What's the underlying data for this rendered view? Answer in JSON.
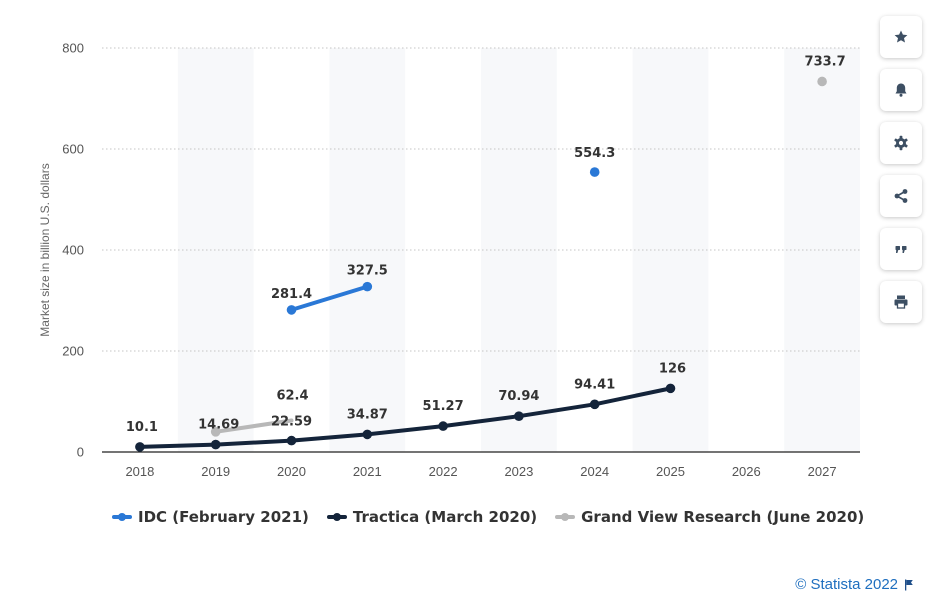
{
  "chart_data": {
    "type": "line",
    "title": "",
    "xlabel": "",
    "ylabel": "Market size in billion U.S. dollars",
    "categories": [
      "2018",
      "2019",
      "2020",
      "2021",
      "2022",
      "2023",
      "2024",
      "2025",
      "2026",
      "2027"
    ],
    "ylim": [
      0,
      800
    ],
    "yticks": [
      0,
      200,
      400,
      600,
      800
    ],
    "grid": true,
    "legend_position": "bottom",
    "series": [
      {
        "name": "IDC (February 2021)",
        "color": "#2a78d6",
        "values": [
          null,
          null,
          281.4,
          327.5,
          null,
          null,
          554.3,
          null,
          null,
          null
        ],
        "labels": [
          null,
          null,
          "281.4",
          "327.5",
          null,
          null,
          "554.3",
          null,
          null,
          null
        ]
      },
      {
        "name": "Tractica (March 2020)",
        "color": "#14243a",
        "values": [
          10.1,
          14.69,
          22.59,
          34.87,
          51.27,
          70.94,
          94.41,
          126,
          null,
          null
        ],
        "labels": [
          "10.1",
          "14.69",
          "22.59",
          "34.87",
          "51.27",
          "70.94",
          "94.41",
          "126",
          null,
          null
        ]
      },
      {
        "name": "Grand View Research (June 2020)",
        "color": "#b8b8b8",
        "values": [
          null,
          40,
          62.4,
          null,
          null,
          null,
          null,
          null,
          null,
          733.7
        ],
        "labels": [
          null,
          null,
          "62.4",
          null,
          null,
          null,
          null,
          null,
          null,
          "733.7"
        ]
      }
    ]
  },
  "toolbar": {
    "buttons": [
      {
        "name": "star-button",
        "icon": "star-icon"
      },
      {
        "name": "notification-button",
        "icon": "bell-icon"
      },
      {
        "name": "settings-button",
        "icon": "gear-icon"
      },
      {
        "name": "share-button",
        "icon": "share-icon"
      },
      {
        "name": "cite-button",
        "icon": "quote-icon"
      },
      {
        "name": "print-button",
        "icon": "print-icon"
      }
    ]
  },
  "credit": {
    "text": "© Statista 2022"
  }
}
